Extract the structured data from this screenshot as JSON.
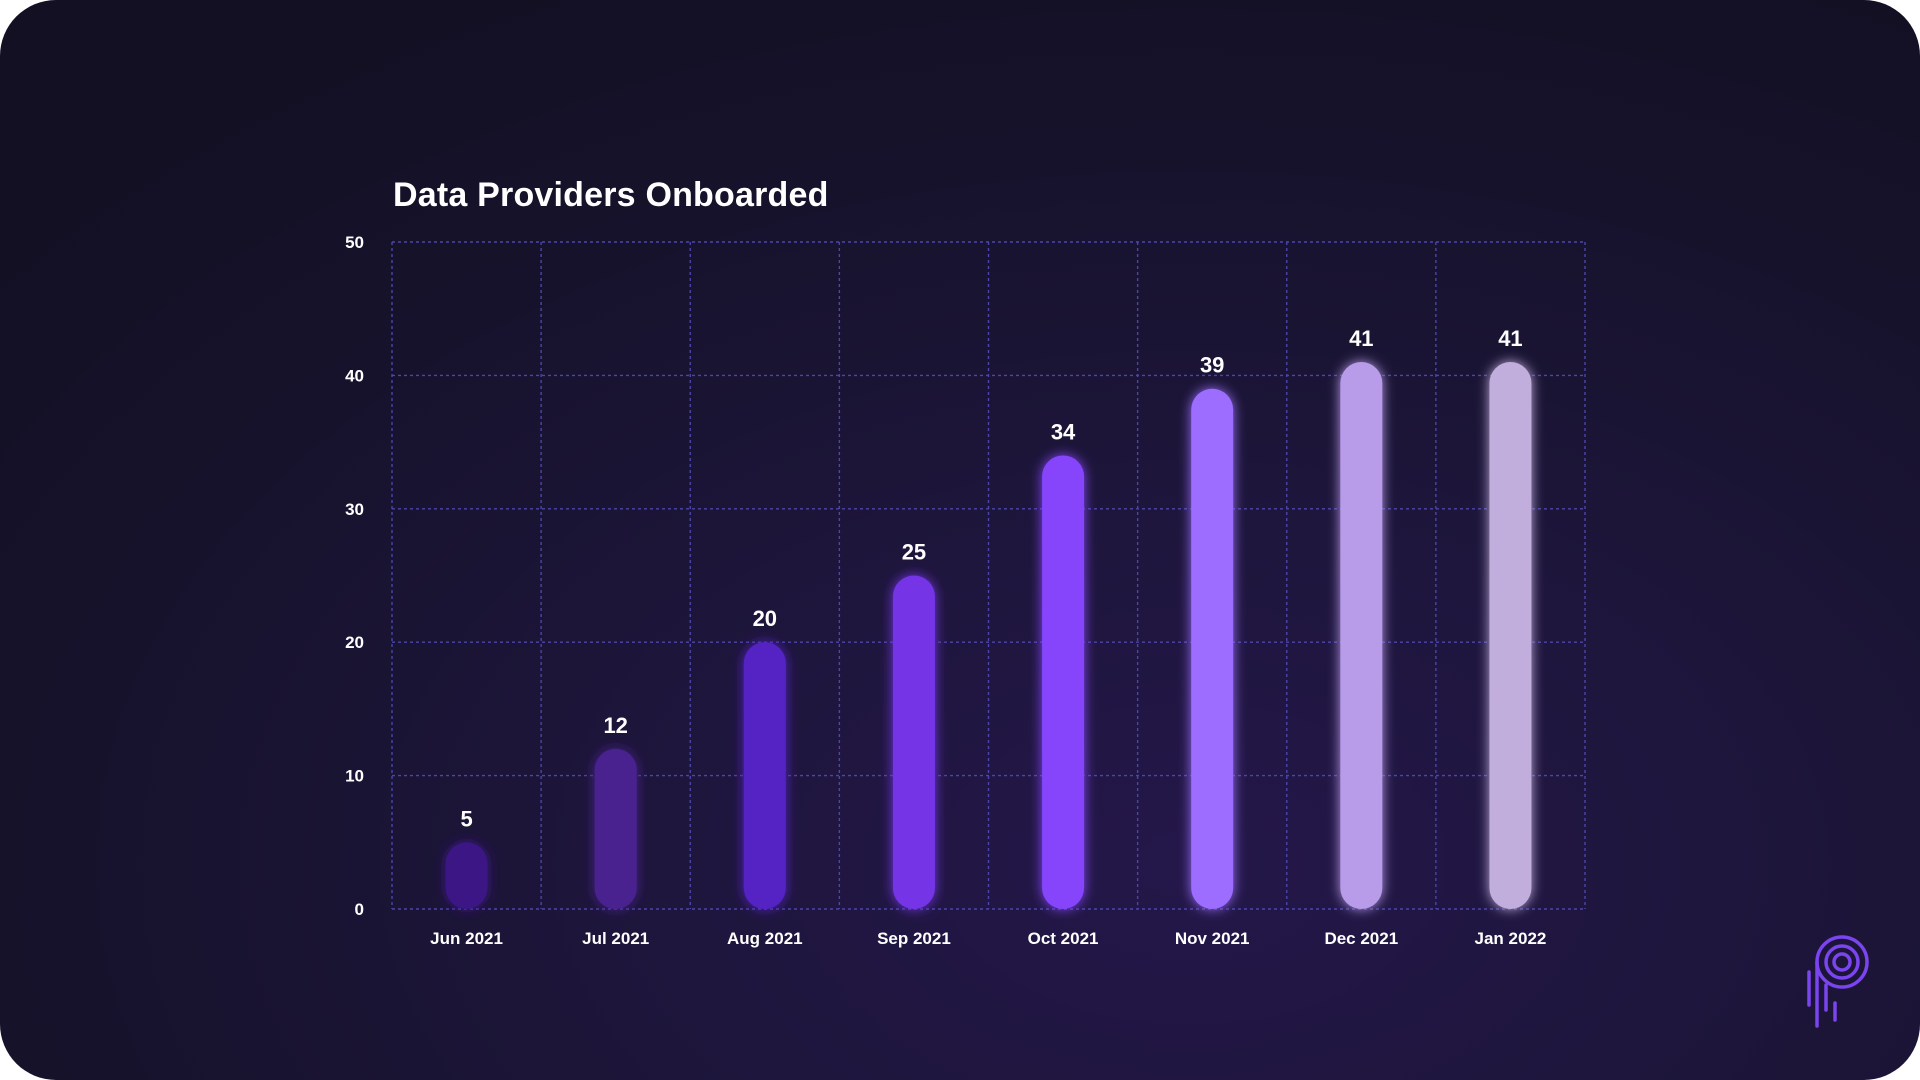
{
  "chart_data": {
    "type": "bar",
    "title": "Data Providers Onboarded",
    "xlabel": "",
    "ylabel": "",
    "categories": [
      "Jun 2021",
      "Jul 2021",
      "Aug 2021",
      "Sep 2021",
      "Oct 2021",
      "Nov 2021",
      "Dec 2021",
      "Jan 2022"
    ],
    "values": [
      5,
      12,
      20,
      25,
      34,
      39,
      41,
      41
    ],
    "ylim": [
      0,
      50
    ],
    "yticks": [
      0,
      10,
      20,
      30,
      40,
      50
    ],
    "grid": true,
    "legend": "none",
    "bar_colors": [
      "#3a1384",
      "#4a2290",
      "#5521c4",
      "#7434e6",
      "#8645fb",
      "#9c6dff",
      "#b89be9",
      "#c2aedd"
    ],
    "data_labels": true
  },
  "background": "#1b1535",
  "grid_color": "#4b46a8",
  "logo_icon": "brand-p-logo-icon"
}
